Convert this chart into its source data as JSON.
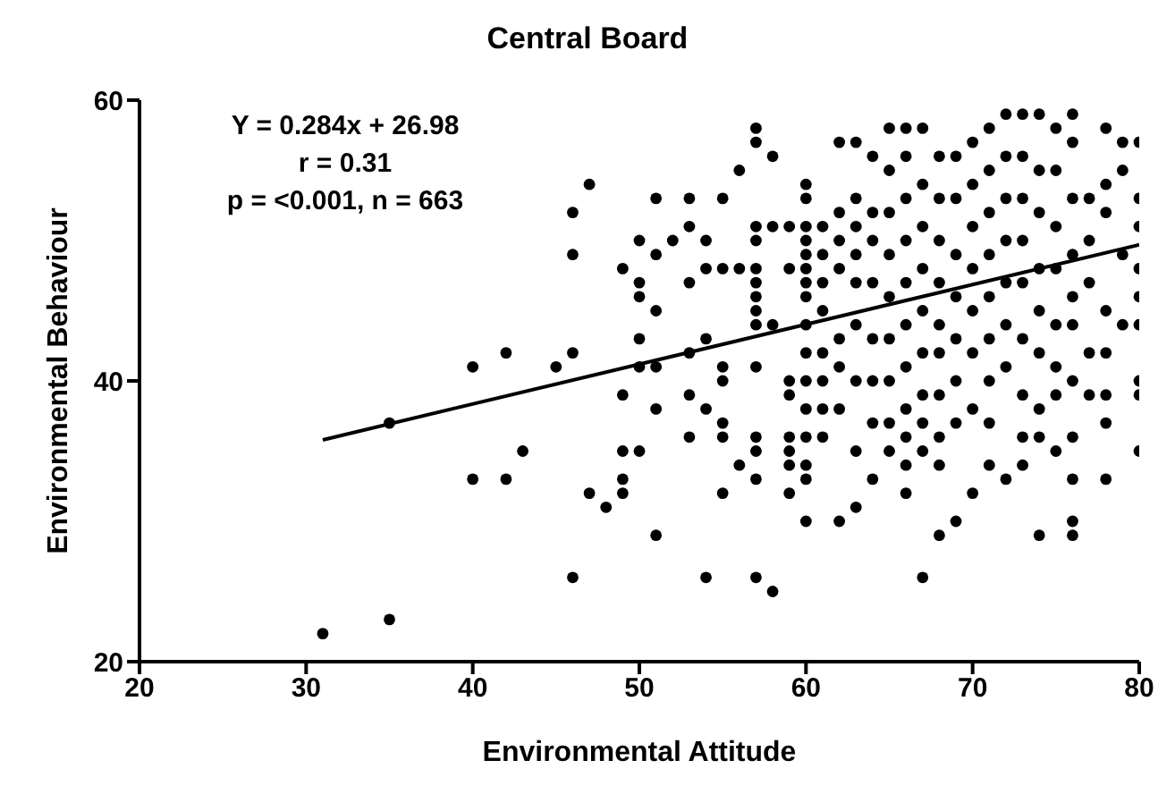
{
  "chart_data": {
    "type": "scatter",
    "title": "Central Board",
    "xlabel": "Environmental Attitude",
    "ylabel": "Environmental Behaviour",
    "xlim": [
      20,
      80
    ],
    "xticks": [
      20,
      30,
      40,
      50,
      60,
      70,
      80
    ],
    "ylim": [
      20,
      60
    ],
    "yticks": [
      20,
      40,
      60
    ],
    "annotations": [
      "Y = 0.284x + 26.98",
      "r = 0.31",
      "p = <0.001, n = 663"
    ],
    "series": [
      {
        "marker": "circle",
        "color": "#000000",
        "x": [
          31,
          35,
          35,
          40,
          40,
          42,
          42,
          43,
          45,
          46,
          46,
          46,
          46,
          47,
          47,
          48,
          49,
          49,
          49,
          49,
          49,
          50,
          50,
          50,
          50,
          50,
          50,
          51,
          51,
          51,
          51,
          51,
          51,
          52,
          53,
          53,
          53,
          53,
          53,
          53,
          54,
          54,
          54,
          54,
          54,
          55,
          55,
          55,
          55,
          55,
          55,
          55,
          56,
          56,
          56,
          57,
          57,
          57,
          57,
          57,
          57,
          57,
          57,
          57,
          57,
          57,
          57,
          57,
          57,
          58,
          58,
          58,
          58,
          59,
          59,
          59,
          59,
          59,
          59,
          59,
          59,
          60,
          60,
          60,
          60,
          60,
          60,
          60,
          60,
          60,
          60,
          60,
          60,
          60,
          60,
          60,
          60,
          61,
          61,
          61,
          61,
          61,
          61,
          61,
          61,
          62,
          62,
          62,
          62,
          62,
          62,
          62,
          62,
          63,
          63,
          63,
          63,
          63,
          63,
          63,
          63,
          63,
          64,
          64,
          64,
          64,
          64,
          64,
          64,
          64,
          65,
          65,
          65,
          65,
          65,
          65,
          65,
          65,
          65,
          66,
          66,
          66,
          66,
          66,
          66,
          66,
          66,
          66,
          66,
          66,
          67,
          67,
          67,
          67,
          67,
          67,
          67,
          67,
          67,
          67,
          68,
          68,
          68,
          68,
          68,
          68,
          68,
          68,
          68,
          68,
          69,
          69,
          69,
          69,
          69,
          69,
          69,
          69,
          70,
          70,
          70,
          70,
          70,
          70,
          70,
          70,
          71,
          71,
          71,
          71,
          71,
          71,
          71,
          71,
          71,
          72,
          72,
          72,
          72,
          72,
          72,
          72,
          72,
          73,
          73,
          73,
          73,
          73,
          73,
          73,
          73,
          73,
          74,
          74,
          74,
          74,
          74,
          74,
          74,
          74,
          74,
          75,
          75,
          75,
          75,
          75,
          75,
          75,
          75,
          76,
          76,
          76,
          76,
          76,
          76,
          76,
          76,
          76,
          76,
          76,
          77,
          77,
          77,
          77,
          77,
          78,
          78,
          78,
          78,
          78,
          78,
          78,
          78,
          79,
          79,
          79,
          79,
          80,
          80,
          80,
          80,
          80,
          80,
          80,
          80,
          80
        ],
        "values": [
          22,
          23,
          37,
          41,
          33,
          42,
          33,
          35,
          41,
          42,
          52,
          49,
          26,
          54,
          32,
          31,
          32,
          33,
          35,
          39,
          48,
          35,
          41,
          43,
          46,
          47,
          50,
          53,
          49,
          45,
          41,
          38,
          29,
          50,
          53,
          51,
          47,
          42,
          39,
          36,
          50,
          48,
          43,
          38,
          26,
          53,
          48,
          41,
          40,
          37,
          36,
          32,
          55,
          48,
          34,
          58,
          57,
          51,
          50,
          48,
          47,
          46,
          45,
          44,
          41,
          36,
          35,
          33,
          26,
          56,
          51,
          44,
          25,
          51,
          48,
          40,
          39,
          36,
          35,
          34,
          32,
          54,
          53,
          51,
          50,
          49,
          48,
          47,
          46,
          44,
          42,
          40,
          38,
          36,
          34,
          33,
          30,
          51,
          49,
          47,
          45,
          42,
          40,
          38,
          36,
          57,
          52,
          50,
          48,
          43,
          41,
          38,
          30,
          57,
          53,
          51,
          49,
          47,
          44,
          40,
          35,
          31,
          56,
          52,
          50,
          47,
          43,
          40,
          37,
          33,
          58,
          55,
          52,
          49,
          46,
          43,
          40,
          37,
          35,
          58,
          56,
          53,
          50,
          47,
          44,
          41,
          38,
          36,
          34,
          32,
          58,
          54,
          51,
          48,
          45,
          42,
          39,
          37,
          35,
          26,
          56,
          53,
          50,
          47,
          44,
          42,
          39,
          36,
          34,
          29,
          56,
          53,
          49,
          46,
          43,
          40,
          37,
          30,
          57,
          54,
          51,
          48,
          45,
          42,
          38,
          32,
          58,
          55,
          52,
          49,
          46,
          43,
          40,
          37,
          34,
          59,
          56,
          53,
          50,
          47,
          44,
          41,
          33,
          59,
          56,
          53,
          50,
          47,
          43,
          39,
          36,
          34,
          59,
          55,
          52,
          48,
          45,
          42,
          38,
          36,
          29,
          58,
          55,
          51,
          48,
          44,
          41,
          39,
          35,
          59,
          57,
          53,
          49,
          46,
          44,
          40,
          36,
          33,
          30,
          29,
          53,
          50,
          47,
          42,
          39,
          58,
          54,
          52,
          45,
          42,
          39,
          37,
          33,
          57,
          55,
          49,
          44,
          57,
          53,
          51,
          48,
          46,
          44,
          40,
          39,
          35
        ]
      },
      {
        "type": "line",
        "color": "#000000",
        "x": [
          31,
          80
        ],
        "values": [
          35.8,
          49.7
        ]
      }
    ]
  }
}
